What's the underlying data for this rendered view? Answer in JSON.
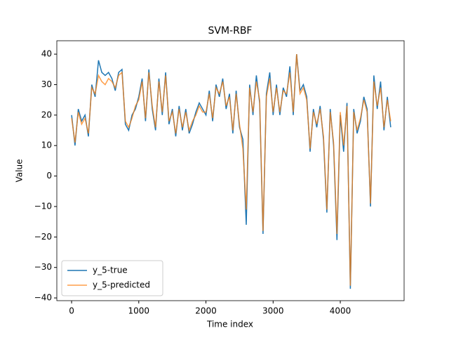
{
  "chart_data": {
    "type": "line",
    "title": "SVM-RBF",
    "x_label": "Time index",
    "y_label": "Value",
    "x": [
      0,
      50,
      100,
      150,
      200,
      250,
      300,
      350,
      400,
      450,
      500,
      550,
      600,
      650,
      700,
      750,
      800,
      850,
      900,
      950,
      1000,
      1050,
      1100,
      1150,
      1200,
      1250,
      1300,
      1350,
      1400,
      1450,
      1500,
      1550,
      1600,
      1650,
      1700,
      1750,
      1800,
      1850,
      1900,
      1950,
      2000,
      2050,
      2100,
      2150,
      2200,
      2250,
      2300,
      2350,
      2400,
      2450,
      2500,
      2550,
      2600,
      2650,
      2700,
      2750,
      2800,
      2850,
      2900,
      2950,
      3000,
      3050,
      3100,
      3150,
      3200,
      3250,
      3300,
      3350,
      3400,
      3450,
      3500,
      3550,
      3600,
      3650,
      3700,
      3750,
      3800,
      3850,
      3900,
      3950,
      4000,
      4050,
      4100,
      4150,
      4200,
      4250,
      4300,
      4350,
      4400,
      4450,
      4500,
      4550,
      4600,
      4650,
      4700,
      4750
    ],
    "series": [
      {
        "name": "y_5-true",
        "color": "#1f77b4",
        "values": [
          20,
          10,
          22,
          18,
          20,
          13,
          30,
          26,
          38,
          34,
          33,
          34,
          32,
          28,
          34,
          35,
          17,
          15,
          20,
          22,
          26,
          32,
          18,
          35,
          22,
          15,
          32,
          20,
          34,
          17,
          22,
          13,
          23,
          15,
          22,
          14,
          17,
          21,
          24,
          22,
          20,
          28,
          18,
          30,
          26,
          32,
          22,
          27,
          14,
          28,
          16,
          12,
          -16,
          30,
          20,
          33,
          24,
          -19,
          27,
          34,
          20,
          30,
          20,
          29,
          26,
          36,
          20,
          40,
          28,
          30,
          26,
          8,
          22,
          16,
          23,
          12,
          -12,
          22,
          10,
          -21,
          20,
          8,
          24,
          -37,
          22,
          14,
          18,
          26,
          22,
          -10,
          33,
          22,
          31,
          15,
          26,
          16
        ]
      },
      {
        "name": "y_5-predicted",
        "color": "#ff7f0e",
        "values": [
          19,
          11,
          21,
          17,
          19,
          14,
          29,
          27,
          33,
          31,
          30,
          32,
          31,
          29,
          33,
          34,
          18,
          16,
          19,
          23,
          25,
          31,
          19,
          34,
          23,
          16,
          31,
          21,
          33,
          18,
          21,
          14,
          22,
          16,
          21,
          15,
          18,
          20,
          23,
          21,
          21,
          27,
          19,
          29,
          27,
          31,
          23,
          26,
          15,
          27,
          17,
          9,
          -11,
          29,
          21,
          31,
          25,
          -18,
          26,
          32,
          21,
          29,
          21,
          28,
          27,
          34,
          21,
          40,
          27,
          29,
          25,
          9,
          21,
          17,
          22,
          13,
          -11,
          21,
          11,
          -19,
          21,
          10,
          23,
          -36,
          21,
          15,
          19,
          25,
          21,
          -9,
          31,
          23,
          29,
          16,
          25,
          18
        ]
      }
    ],
    "xlim": [
      -220,
      4950
    ],
    "ylim": [
      -40.9,
      44.4
    ],
    "xticks": [
      0,
      1000,
      2000,
      3000,
      4000
    ],
    "yticks": [
      {
        "value": -40,
        "label": "−40"
      },
      {
        "value": -30,
        "label": "−30"
      },
      {
        "value": -20,
        "label": "−20"
      },
      {
        "value": -10,
        "label": "−10"
      },
      0,
      10,
      20,
      30,
      40
    ],
    "legend": "lower left"
  }
}
